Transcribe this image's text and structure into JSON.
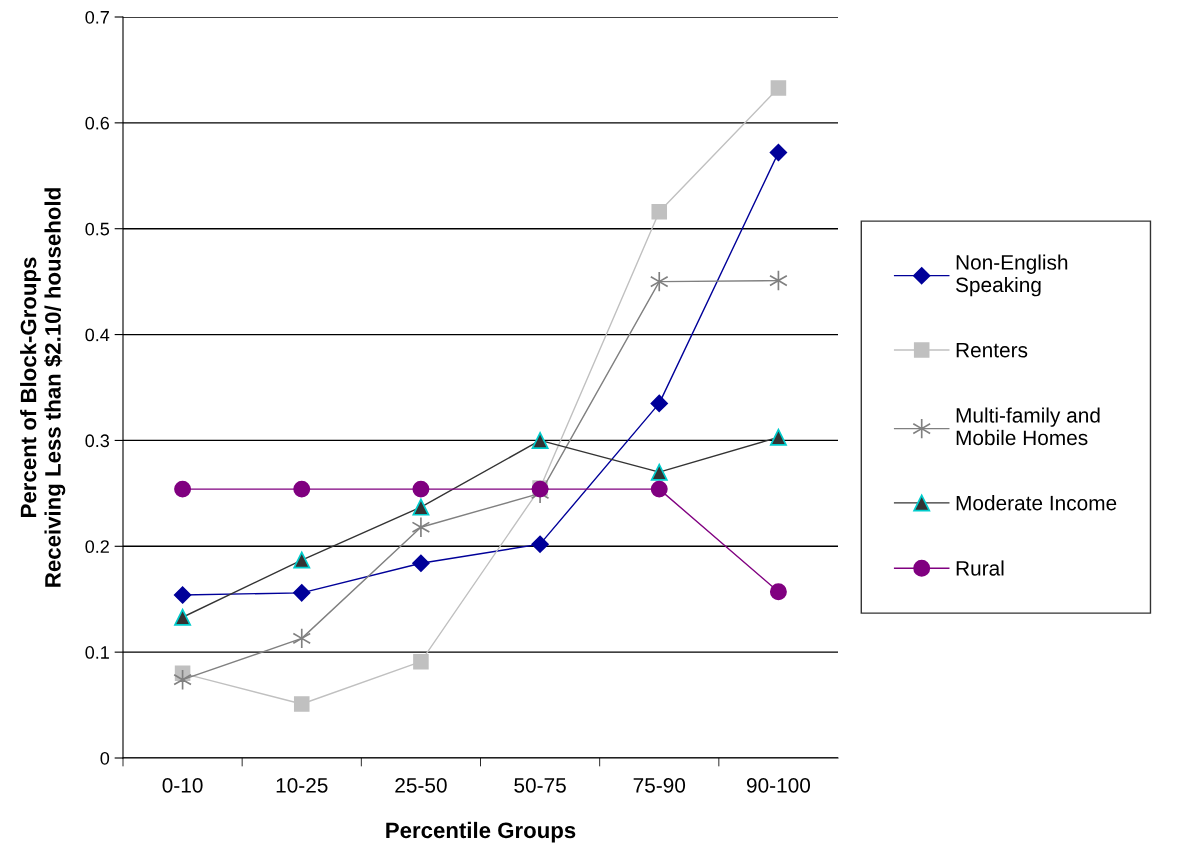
{
  "chart_data": {
    "type": "line",
    "xlabel": "Percentile Groups",
    "ylabel": "Percent of Block-Groups\nReceiving Less than $2.10/ household",
    "categories": [
      "0-10",
      "10-25",
      "25-50",
      "50-75",
      "75-90",
      "90-100"
    ],
    "series": [
      {
        "name": "Non-English\nSpeaking",
        "color": "#000099",
        "marker": "diamond",
        "values": [
          0.154,
          0.156,
          0.184,
          0.202,
          0.335,
          0.572
        ]
      },
      {
        "name": "Renters",
        "color": "#c0c0c0",
        "marker": "square",
        "values": [
          0.08,
          0.051,
          0.091,
          0.255,
          0.516,
          0.633
        ]
      },
      {
        "name": "Multi-family and\nMobile Homes",
        "color": "#808080",
        "marker": "cross",
        "values": [
          0.074,
          0.113,
          0.218,
          0.25,
          0.45,
          0.451
        ]
      },
      {
        "name": "Moderate Income",
        "color": "#333333",
        "marker": "triangle",
        "values": [
          0.133,
          0.187,
          0.237,
          0.3,
          0.27,
          0.303
        ]
      },
      {
        "name": "Rural",
        "color": "#800080",
        "marker": "circle",
        "values": [
          0.254,
          0.254,
          0.254,
          0.254,
          0.254,
          0.157
        ]
      }
    ],
    "ylim": [
      0,
      0.7
    ],
    "yticks": [
      0,
      0.1,
      0.2,
      0.3,
      0.4,
      0.5,
      0.6,
      0.7
    ],
    "grid": "y",
    "legend": "right",
    "line_style": "solid"
  }
}
